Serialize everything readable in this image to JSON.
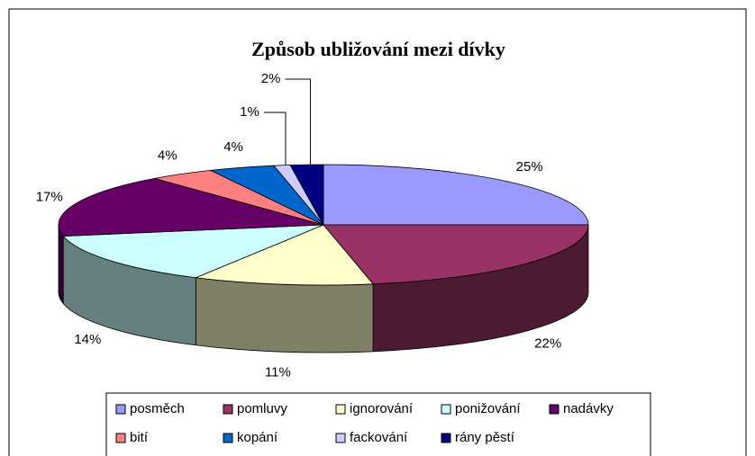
{
  "chart_data": {
    "type": "pie3d",
    "title": "Způsob ubližování mezi dívky",
    "categories": [
      "posměch",
      "pomluvy",
      "ignorování",
      "ponižování",
      "nadávky",
      "bití",
      "kopání",
      "fackování",
      "rány pěstí"
    ],
    "values": [
      25,
      22,
      11,
      14,
      17,
      4,
      4,
      1,
      2
    ],
    "value_labels": [
      "25%",
      "22%",
      "11%",
      "14%",
      "17%",
      "4%",
      "4%",
      "1%",
      "2%"
    ],
    "colors": [
      "#9999ff",
      "#993366",
      "#ffffcc",
      "#ccffff",
      "#660066",
      "#ff8080",
      "#0066cc",
      "#ccccff",
      "#000080"
    ],
    "legend": "bottom"
  }
}
